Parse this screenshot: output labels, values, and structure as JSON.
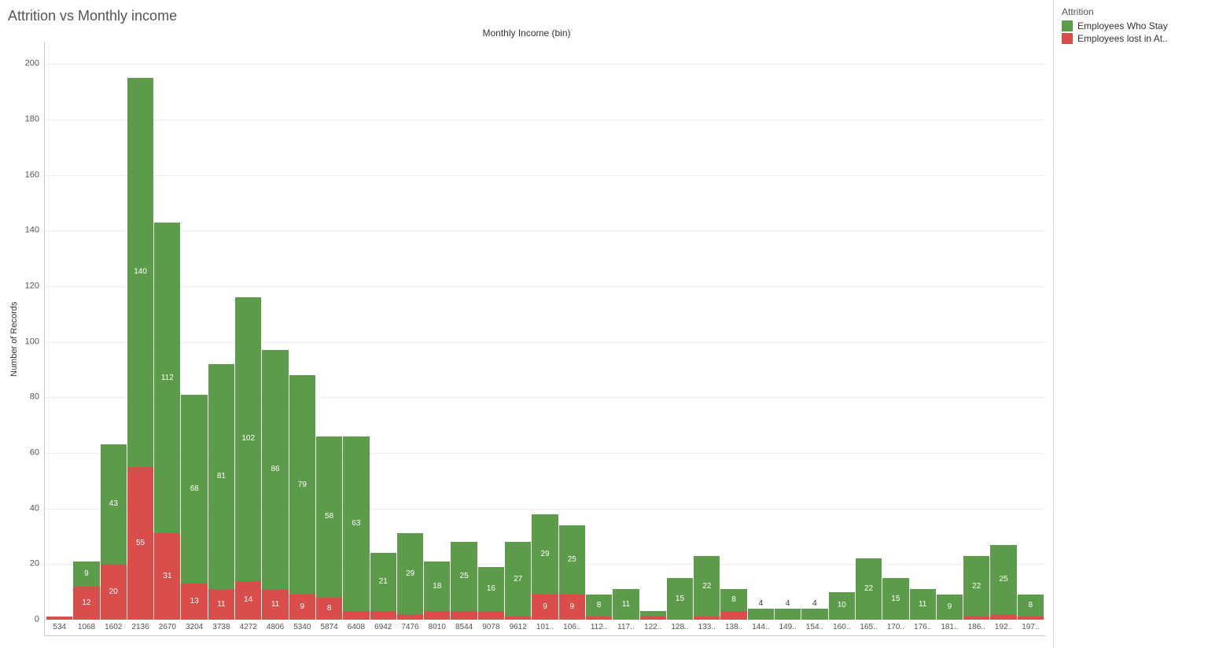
{
  "chart": {
    "title": "Attrition vs Monthly income",
    "x_axis_title": "Monthly Income (bin)",
    "y_axis_title": "Number of Records",
    "type": "stacked-bar",
    "y_max": 208,
    "y_ticks": [
      0,
      20,
      40,
      60,
      80,
      100,
      120,
      140,
      160,
      180,
      200
    ],
    "colors": {
      "stay": "#5b9b4a",
      "lost": "#d94e4a",
      "grid": "#eeeeee",
      "axis": "#cccccc",
      "background": "#ffffff",
      "label_on_bar": "#ffffff",
      "label_dark": "#333333"
    },
    "categories": [
      "534",
      "1068",
      "1602",
      "2136",
      "2670",
      "3204",
      "3738",
      "4272",
      "4806",
      "5340",
      "5874",
      "6408",
      "6942",
      "7476",
      "8010",
      "8544",
      "9078",
      "9612",
      "101..",
      "106..",
      "112..",
      "117..",
      "122..",
      "128..",
      "133..",
      "138..",
      "144..",
      "149..",
      "154..",
      "160..",
      "165..",
      "170..",
      "176..",
      "181..",
      "186..",
      "192..",
      "197.."
    ],
    "series": {
      "lost": [
        1,
        12,
        20,
        55,
        31,
        13,
        11,
        14,
        11,
        9,
        8,
        3,
        3,
        2,
        3,
        3,
        3,
        1,
        9,
        9,
        1,
        0,
        1,
        0,
        1,
        3,
        0,
        0,
        0,
        0,
        0,
        0,
        0,
        0,
        1,
        2,
        1
      ],
      "stay": [
        0,
        9,
        43,
        140,
        112,
        68,
        81,
        102,
        86,
        79,
        58,
        63,
        21,
        29,
        18,
        25,
        16,
        27,
        29,
        25,
        8,
        11,
        2,
        15,
        22,
        8,
        4,
        4,
        4,
        10,
        22,
        15,
        11,
        9,
        22,
        25,
        8
      ]
    },
    "show_label_threshold": 7,
    "bar_width_ratio": 0.92,
    "title_fontsize": 18,
    "axis_label_fontsize": 11,
    "tick_fontsize": 10
  },
  "legend": {
    "title": "Attrition",
    "items": [
      {
        "label": "Employees Who Stay",
        "color": "#5b9b4a"
      },
      {
        "label": "Employees lost in At..",
        "color": "#d94e4a"
      }
    ]
  }
}
